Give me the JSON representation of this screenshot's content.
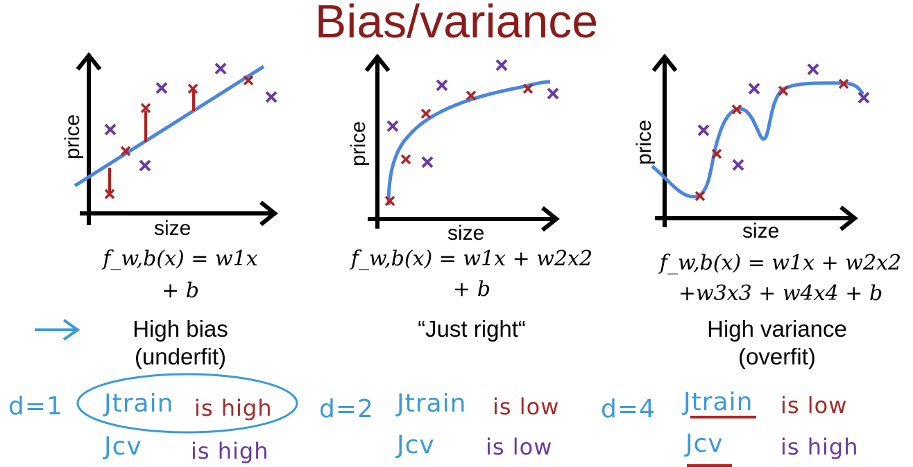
{
  "title": "Bias/variance",
  "colors": {
    "title": "#8b1c1c",
    "curve": "#4a86e0",
    "red_cross": "#b22222",
    "purple_cross": "#6a3aa0",
    "hand_blue": "#3a9ad9"
  },
  "panels": [
    {
      "xlabel": "size",
      "ylabel": "price",
      "formula_line1": "f_w,b(x) = w1x",
      "formula_line2": "+ b",
      "caption_line1": "High bias",
      "caption_line2": "(underfit)",
      "degree": "d=1",
      "jtrain": "Jtrain",
      "jtrain_status": "is high",
      "jcv": "Jcv",
      "jcv_status": "is high"
    },
    {
      "xlabel": "size",
      "ylabel": "price",
      "formula_line1": "f_w,b(x) = w1x + w2x2",
      "formula_line2": "+ b",
      "caption_line1": "“Just right“",
      "caption_line2": "",
      "degree": "d=2",
      "jtrain": "Jtrain",
      "jtrain_status": "is low",
      "jcv": "Jcv",
      "jcv_status": "is low"
    },
    {
      "xlabel": "size",
      "ylabel": "price",
      "formula_line1": "f_w,b(x) = w1x + w2x2",
      "formula_line2": "+w3x3 + w4x4 + b",
      "caption_line1": "High variance",
      "caption_line2": "(overfit)",
      "degree": "d=4",
      "jtrain": "Jtrain",
      "jtrain_status": "is low",
      "jcv": "Jcv",
      "jcv_status": "is high"
    }
  ]
}
